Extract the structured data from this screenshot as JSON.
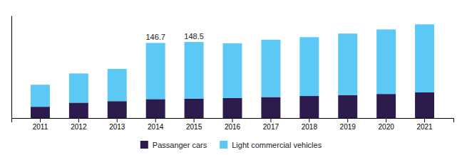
{
  "chart_data": {
    "type": "bar",
    "stacked": true,
    "categories": [
      "2011",
      "2012",
      "2013",
      "2014",
      "2015",
      "2016",
      "2017",
      "2018",
      "2019",
      "2020",
      "2021"
    ],
    "series": [
      {
        "name": "Passanger cars",
        "color": "#2d1b4e",
        "values": [
          22,
          30,
          33,
          37,
          38,
          39,
          41,
          43,
          45,
          47,
          50
        ]
      },
      {
        "name": "Light commercial vehicles",
        "color": "#5bc8f5",
        "values": [
          43,
          57,
          63,
          109.7,
          110.5,
          107,
          112,
          115,
          120,
          126,
          133
        ]
      }
    ],
    "annotations": [
      {
        "text": "146.7",
        "category": "2014"
      },
      {
        "text": "148.5",
        "category": "2015"
      }
    ],
    "ylim": [
      0,
      200
    ],
    "tick_labels": "x",
    "legend": "bottom"
  }
}
